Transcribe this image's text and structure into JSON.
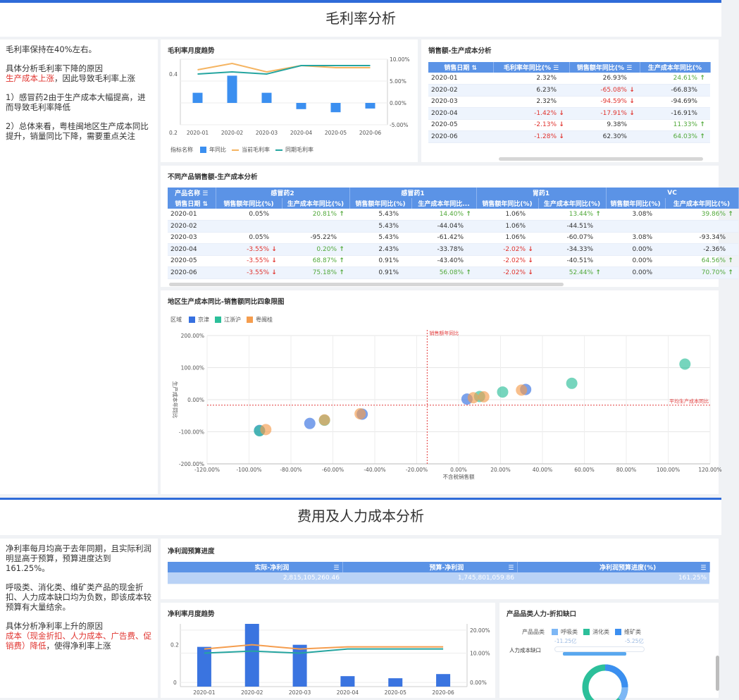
{
  "section1": {
    "title": "毛利率分析",
    "notes": {
      "p1": "毛利率保持在40%左右。",
      "p2a": "具体分析毛利率下降的原因",
      "p2b": "生产成本上涨",
      "p2c": "，因此导致毛利率上涨",
      "p3": "1）感冒药2由于生产成本大幅提高，进而导致毛利率降低",
      "p4": "2）总体来看，粤桂闽地区生产成本同比提升，销量同比下降，需要重点关注"
    }
  },
  "gm_trend": {
    "title": "毛利率月度趋势",
    "legend_label": "指标名称",
    "legend": [
      "年同比",
      "当前毛利率",
      "同期毛利率"
    ],
    "colors": {
      "bar": "#3b8ff0",
      "current": "#f5b461",
      "prior": "#25a5a0"
    },
    "y_left_ticks": [
      "0.4",
      "0.2"
    ],
    "y_right_ticks": [
      "10.00%",
      "5.00%",
      "0.00%",
      "-5.00%"
    ],
    "chart_data": {
      "type": "bar",
      "categories": [
        "2020-01",
        "2020-02",
        "2020-03",
        "2020-04",
        "2020-05",
        "2020-06"
      ],
      "series": [
        {
          "name": "年同比",
          "values": [
            2.32,
            6.23,
            2.32,
            -1.42,
            -2.13,
            -1.28
          ]
        },
        {
          "name": "当前毛利率",
          "values": [
            0.42,
            0.45,
            0.41,
            0.44,
            0.43,
            0.43
          ]
        },
        {
          "name": "同期毛利率",
          "values": [
            0.4,
            0.41,
            0.4,
            0.44,
            0.44,
            0.44
          ]
        }
      ],
      "ylim_right": [
        -5,
        10
      ]
    }
  },
  "sales_cost": {
    "title": "销售额-生产成本分析",
    "headers": [
      "销售日期",
      "毛利率年同比(%",
      "销售额年同比(%",
      "生产成本年同比(%"
    ],
    "rows": [
      {
        "date": "2020-01",
        "gm": "2.32%",
        "sales": "26.93%",
        "sales_dir": "",
        "cost": "24.61%",
        "cost_dir": "up"
      },
      {
        "date": "2020-02",
        "gm": "6.23%",
        "sales": "-65.08%",
        "sales_dir": "down",
        "cost": "-66.83%",
        "cost_dir": ""
      },
      {
        "date": "2020-03",
        "gm": "2.32%",
        "sales": "-94.59%",
        "sales_dir": "down",
        "cost": "-94.69%",
        "cost_dir": ""
      },
      {
        "date": "2020-04",
        "gm": "-1.42%",
        "gm_dir": "down",
        "sales": "-17.91%",
        "sales_dir": "down",
        "cost": "-16.91%",
        "cost_dir": ""
      },
      {
        "date": "2020-05",
        "gm": "-2.13%",
        "gm_dir": "down",
        "sales": "9.38%",
        "sales_dir": "",
        "cost": "11.33%",
        "cost_dir": "up"
      },
      {
        "date": "2020-06",
        "gm": "-1.28%",
        "gm_dir": "down",
        "sales": "62.30%",
        "sales_dir": "",
        "cost": "64.03%",
        "cost_dir": "up"
      }
    ]
  },
  "product_table": {
    "title": "不同产品销售额-生产成本分析",
    "product_header": "产品名称",
    "date_header": "销售日期",
    "products": [
      "感冒药2",
      "感冒药1",
      "胃药1",
      "VC"
    ],
    "sub_headers": [
      "销售额年同比(%)",
      "生产成本年同比(%)",
      "销售额年同比(%)",
      "生产成本年同比...",
      "销售额年同比(%)",
      "生产成本年同比(%)",
      "销售额年同比(%)",
      "生产成本年同比(%)"
    ],
    "rows": [
      {
        "date": "2020-01",
        "cells": [
          [
            "0.05%",
            ""
          ],
          [
            "20.81%",
            "up"
          ],
          [
            "5.43%",
            ""
          ],
          [
            "14.40%",
            "up"
          ],
          [
            "1.06%",
            ""
          ],
          [
            "13.44%",
            "up"
          ],
          [
            "3.08%",
            ""
          ],
          [
            "39.86%",
            "up"
          ]
        ]
      },
      {
        "date": "2020-02",
        "cells": [
          [
            "",
            ""
          ],
          [
            "",
            ""
          ],
          [
            "5.43%",
            ""
          ],
          [
            "-44.04%",
            ""
          ],
          [
            "1.06%",
            ""
          ],
          [
            "-44.51%",
            ""
          ],
          [
            "",
            ""
          ],
          [
            "",
            ""
          ]
        ]
      },
      {
        "date": "2020-03",
        "cells": [
          [
            "0.05%",
            ""
          ],
          [
            "-95.22%",
            ""
          ],
          [
            "5.43%",
            ""
          ],
          [
            "-61.42%",
            ""
          ],
          [
            "1.06%",
            ""
          ],
          [
            "-60.07%",
            ""
          ],
          [
            "3.08%",
            ""
          ],
          [
            "-93.34%",
            ""
          ]
        ]
      },
      {
        "date": "2020-04",
        "cells": [
          [
            "-3.55%",
            "down"
          ],
          [
            "0.20%",
            "up"
          ],
          [
            "2.43%",
            ""
          ],
          [
            "-33.78%",
            ""
          ],
          [
            "-2.02%",
            "down"
          ],
          [
            "-34.33%",
            ""
          ],
          [
            "0.00%",
            ""
          ],
          [
            "-2.36%",
            ""
          ]
        ]
      },
      {
        "date": "2020-05",
        "cells": [
          [
            "-3.55%",
            "down"
          ],
          [
            "68.87%",
            "up"
          ],
          [
            "0.91%",
            ""
          ],
          [
            "-43.40%",
            ""
          ],
          [
            "-2.02%",
            "down"
          ],
          [
            "-40.51%",
            ""
          ],
          [
            "0.00%",
            ""
          ],
          [
            "64.56%",
            "up"
          ]
        ]
      },
      {
        "date": "2020-06",
        "cells": [
          [
            "-3.55%",
            "down"
          ],
          [
            "75.18%",
            "up"
          ],
          [
            "0.91%",
            ""
          ],
          [
            "56.08%",
            "up"
          ],
          [
            "-2.02%",
            "down"
          ],
          [
            "52.44%",
            "up"
          ],
          [
            "0.00%",
            ""
          ],
          [
            "70.70%",
            "up"
          ]
        ]
      }
    ]
  },
  "quadrant": {
    "title": "地区生产成本同比-销售额同比四象限图",
    "legend_label": "区域",
    "legend": [
      "京津",
      "江浙沪",
      "粤闽桂"
    ],
    "colors": [
      "#3670e0",
      "#2cbf9a",
      "#f59d4e"
    ],
    "ylabel": "生产成本年同比",
    "xlabel": "不含税销售额",
    "vline_label": "销售额年同比",
    "hline_label": "平均生产成本同比",
    "x_ticks": [
      "-120.00%",
      "-100.00%",
      "-80.00%",
      "-60.00%",
      "-40.00%",
      "-20.00%",
      "0.00%",
      "20.00%",
      "40.00%",
      "60.00%",
      "80.00%",
      "100.00%",
      "120.00%"
    ],
    "y_ticks": [
      "200.00%",
      "100.00%",
      "0.00%",
      "-100.00%",
      "-200.00%"
    ],
    "chart_data": {
      "type": "scatter",
      "xlim": [
        -120,
        120
      ],
      "ylim": [
        -200,
        200
      ],
      "vline_x": -15,
      "hline_y": -17,
      "points": [
        {
          "region": 0,
          "x": -71,
          "y": -74
        },
        {
          "region": 0,
          "x": -46,
          "y": -45
        },
        {
          "region": 0,
          "x": 4,
          "y": 2
        },
        {
          "region": 0,
          "x": 32,
          "y": 32
        },
        {
          "region": 0,
          "x": -95,
          "y": -96
        },
        {
          "region": 1,
          "x": -95,
          "y": -97
        },
        {
          "region": 1,
          "x": -64,
          "y": -64
        },
        {
          "region": 1,
          "x": 10,
          "y": 10
        },
        {
          "region": 1,
          "x": 21,
          "y": 24
        },
        {
          "region": 1,
          "x": 54,
          "y": 51
        },
        {
          "region": 1,
          "x": 108,
          "y": 111
        },
        {
          "region": 2,
          "x": -92,
          "y": -93
        },
        {
          "region": 2,
          "x": -64,
          "y": -63
        },
        {
          "region": 2,
          "x": -47,
          "y": -44
        },
        {
          "region": 2,
          "x": 7,
          "y": 6
        },
        {
          "region": 2,
          "x": 12,
          "y": 9
        },
        {
          "region": 2,
          "x": 30,
          "y": 30
        }
      ]
    }
  },
  "section2": {
    "title": "费用及人力成本分析",
    "notes": {
      "p1": "净利率每月均高于去年同期，且实际利润明显高于预算，预算进度达到161.25%。",
      "p2": "呼吸类、消化类、维矿类产品的现金折扣、人力成本缺口均为负数，即该成本较预算有大量结余。",
      "p3a": "具体分析净利率上升的原因",
      "p3b": "成本（现金折扣、人力成本、广告费、促销费）降低",
      "p3c": "，使得净利率上涨"
    }
  },
  "budget": {
    "title": "净利润预算进度",
    "headers": [
      "实际-净利润",
      "预算-净利润",
      "净利润预算进度(%)"
    ],
    "values": [
      "2,815,105,260.46",
      "1,745,801,059.86",
      "161.25%"
    ]
  },
  "np_trend": {
    "title": "净利率月度趋势",
    "y_left_ticks": [
      "0.2",
      "0"
    ],
    "y_right_ticks": [
      "20.00%",
      "10.00%",
      "0.00%"
    ],
    "chart_data": {
      "type": "bar",
      "categories": [
        "2020-01",
        "2020-02",
        "2020-03",
        "2020-04",
        "2020-05",
        "2020-06"
      ],
      "series": [
        {
          "values": [
            0.19,
            0.3,
            0.2,
            0.05,
            0.04,
            0.06
          ]
        },
        {
          "values": [
            0.18,
            0.2,
            0.18,
            0.19,
            0.19,
            0.19
          ]
        },
        {
          "values": [
            0.16,
            0.17,
            0.16,
            0.18,
            0.18,
            0.18
          ]
        }
      ],
      "ylim": [
        0,
        0.3
      ]
    }
  },
  "labor": {
    "title": "产品品类人力-折扣缺口",
    "legend_label": "产品品类",
    "legend": [
      "呼吸类",
      "消化类",
      "维矿类"
    ],
    "colors": [
      "#7db7f5",
      "#2cbf9a",
      "#3b8ff0"
    ],
    "sub_values": [
      "-11.25亿",
      "-5.25亿"
    ],
    "row_label": "人力成本缺口"
  }
}
